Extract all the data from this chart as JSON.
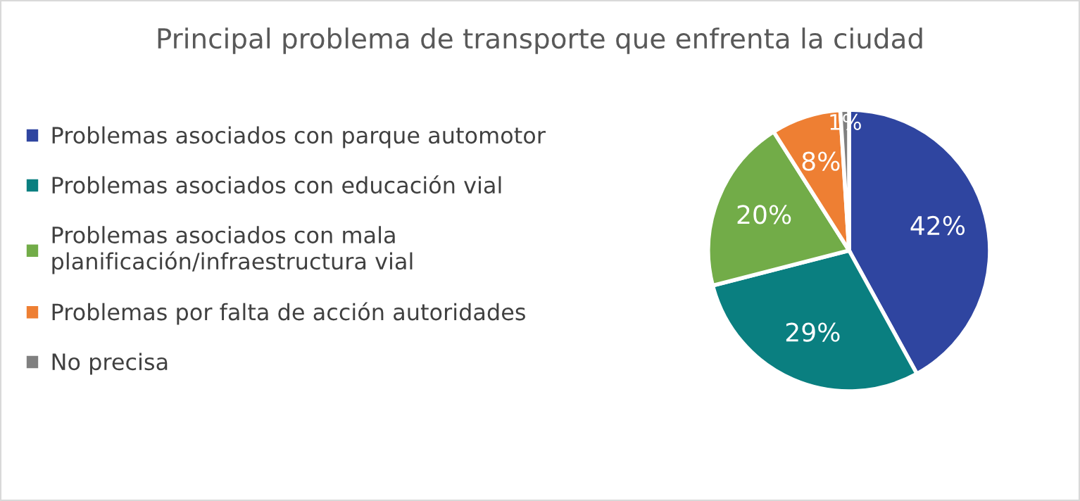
{
  "chart_data": {
    "type": "pie",
    "title": "Principal problema de transporte que enfrenta la ciudad",
    "categories": [
      "Problemas asociados con parque automotor",
      "Problemas asociados con educación vial",
      "Problemas asociados con mala\nplanificación/infraestructura vial",
      "Problemas por falta de acción autoridades",
      "No precisa"
    ],
    "values": [
      42,
      29,
      20,
      8,
      1
    ],
    "colors": [
      "#2f45a0",
      "#0a7f80",
      "#72ac48",
      "#ee7f33",
      "#808080"
    ],
    "value_labels": [
      "42%",
      "29%",
      "20%",
      "8%",
      "1%"
    ],
    "legend": "left"
  }
}
